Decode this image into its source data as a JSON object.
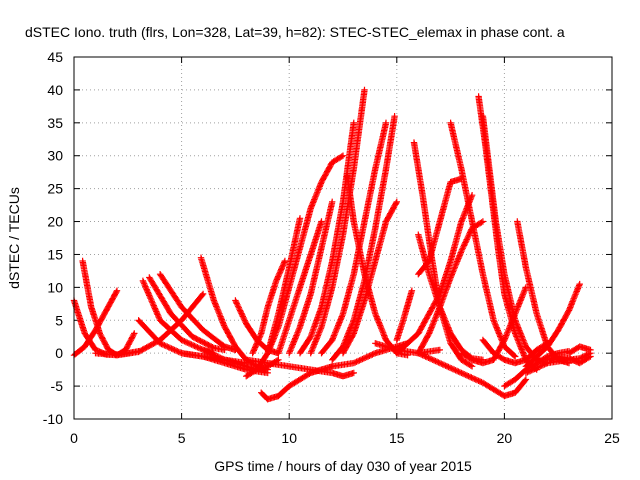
{
  "chart_data": {
    "type": "scatter",
    "title": "dSTEC Iono. truth (flrs, Lon=328, Lat=39, h=82): STEC-STEC_elemax in phase cont. a",
    "xlabel": "GPS time / hours of day 030 of year 2015",
    "ylabel": "dSTEC  / TECUs",
    "xlim": [
      0,
      25
    ],
    "ylim": [
      -10,
      45
    ],
    "xticks": [
      0,
      5,
      10,
      15,
      20,
      25
    ],
    "yticks": [
      -10,
      -5,
      0,
      5,
      10,
      15,
      20,
      25,
      30,
      35,
      40,
      45
    ],
    "grid": true,
    "marker": "plus",
    "color": "#ff0000",
    "series": [
      {
        "x": [
          0.0,
          0.5,
          1.0,
          1.5,
          2.0,
          2.5,
          3.0
        ],
        "y": [
          8.0,
          3.0,
          0.5,
          -0.2,
          -0.2,
          0.0,
          0.3
        ]
      },
      {
        "x": [
          0.0,
          0.5,
          1.0,
          1.5,
          2.0
        ],
        "y": [
          -0.3,
          1.0,
          3.5,
          6.5,
          9.5
        ]
      },
      {
        "x": [
          0.4,
          0.8,
          1.2,
          1.6,
          2.0,
          2.4,
          2.8
        ],
        "y": [
          14.0,
          7.0,
          3.0,
          0.5,
          -0.3,
          0.5,
          3.0
        ]
      },
      {
        "x": [
          1.0,
          2.0,
          3.0,
          4.0,
          5.0,
          6.0
        ],
        "y": [
          0.0,
          -0.3,
          0.2,
          2.0,
          5.0,
          9.0
        ]
      },
      {
        "x": [
          3.2,
          4.0,
          5.0,
          6.0,
          6.5
        ],
        "y": [
          11.0,
          5.0,
          2.0,
          0.5,
          0.0
        ]
      },
      {
        "x": [
          3.5,
          4.5,
          5.5,
          6.5,
          7.0
        ],
        "y": [
          11.5,
          6.0,
          2.5,
          0.8,
          0.5
        ]
      },
      {
        "x": [
          4.0,
          5.0,
          6.0,
          7.0,
          7.5
        ],
        "y": [
          12.0,
          7.0,
          3.5,
          1.0,
          0.5
        ]
      },
      {
        "x": [
          3.0,
          4.0,
          5.0,
          6.0,
          7.0,
          8.0
        ],
        "y": [
          5.0,
          1.5,
          0.0,
          -0.5,
          -1.0,
          -1.5
        ]
      },
      {
        "x": [
          5.9,
          6.5,
          7.0,
          7.5,
          8.0,
          8.5,
          9.0
        ],
        "y": [
          14.5,
          8.0,
          4.0,
          1.0,
          -1.0,
          -2.0,
          -2.5
        ]
      },
      {
        "x": [
          5.0,
          6.0,
          7.0,
          8.0,
          9.0
        ],
        "y": [
          0.0,
          -0.5,
          -1.5,
          -2.5,
          -3.0
        ]
      },
      {
        "x": [
          7.5,
          8.0,
          8.5,
          9.0,
          9.5
        ],
        "y": [
          8.0,
          4.5,
          2.0,
          0.5,
          0.0
        ]
      },
      {
        "x": [
          6.0,
          7.0,
          8.0,
          8.5,
          9.0,
          9.5
        ],
        "y": [
          0.5,
          -1.0,
          -2.0,
          -2.5,
          -2.0,
          -1.0
        ]
      },
      {
        "x": [
          8.7,
          9.0,
          9.5,
          10.0,
          10.5,
          11.0,
          11.5,
          12.0
        ],
        "y": [
          -6.0,
          -7.0,
          -6.5,
          -5.0,
          -4.0,
          -3.0,
          -2.5,
          -2.0
        ]
      },
      {
        "x": [
          8.0,
          8.5,
          9.0,
          9.5,
          10.0,
          10.5,
          11.0,
          11.5,
          12.0,
          12.5
        ],
        "y": [
          -3.5,
          -2.5,
          0.0,
          4.0,
          10.0,
          16.0,
          22.0,
          26.0,
          29.0,
          30.0
        ]
      },
      {
        "x": [
          8.3,
          8.7,
          9.0,
          9.4,
          9.8
        ],
        "y": [
          0.0,
          3.0,
          7.0,
          11.0,
          14.0
        ]
      },
      {
        "x": [
          9.0,
          9.5,
          10.0,
          10.5
        ],
        "y": [
          0.0,
          6.0,
          13.0,
          20.5
        ]
      },
      {
        "x": [
          9.5,
          10.0,
          10.5,
          11.0,
          11.5
        ],
        "y": [
          0.0,
          5.0,
          10.0,
          15.0,
          20.0
        ]
      },
      {
        "x": [
          10.0,
          10.5,
          11.0,
          11.5,
          12.0
        ],
        "y": [
          0.0,
          4.0,
          9.0,
          16.0,
          23.0
        ]
      },
      {
        "x": [
          8.0,
          9.0,
          10.0,
          11.0,
          12.0,
          12.5,
          13.0
        ],
        "y": [
          -1.0,
          -1.5,
          -2.0,
          -2.5,
          -3.0,
          -3.5,
          -3.0
        ]
      },
      {
        "x": [
          11.0,
          11.5,
          12.0,
          12.5,
          13.0,
          13.5
        ],
        "y": [
          0.0,
          4.0,
          10.0,
          18.0,
          28.0,
          40.0
        ]
      },
      {
        "x": [
          10.5,
          11.0,
          11.5,
          12.0,
          12.5,
          13.0
        ],
        "y": [
          0.0,
          2.5,
          7.0,
          14.0,
          23.0,
          35.0
        ]
      },
      {
        "x": [
          11.5,
          12.0,
          12.5,
          13.0,
          13.5,
          14.0,
          14.5
        ],
        "y": [
          0.0,
          2.0,
          6.0,
          12.0,
          20.0,
          28.0,
          35.0
        ]
      },
      {
        "x": [
          12.0,
          12.5,
          13.0,
          13.5,
          14.0,
          14.5,
          14.9
        ],
        "y": [
          -1.0,
          1.0,
          5.0,
          11.0,
          19.0,
          28.0,
          36.0
        ]
      },
      {
        "x": [
          12.5,
          13.0,
          13.5,
          14.0,
          14.5,
          15.0
        ],
        "y": [
          0.0,
          3.0,
          8.0,
          14.0,
          20.0,
          23.0
        ]
      },
      {
        "x": [
          12.7,
          13.0,
          13.5,
          14.0,
          14.5,
          15.0,
          15.5
        ],
        "y": [
          27.0,
          20.0,
          12.0,
          6.0,
          2.0,
          0.0,
          -0.3
        ]
      },
      {
        "x": [
          12.0,
          13.0,
          14.0,
          15.0,
          15.5
        ],
        "y": [
          -2.0,
          -1.5,
          0.0,
          1.0,
          1.5
        ]
      },
      {
        "x": [
          15.0,
          15.3,
          15.7
        ],
        "y": [
          2.0,
          5.0,
          9.5
        ]
      },
      {
        "x": [
          14.0,
          15.0,
          16.0,
          17.0
        ],
        "y": [
          1.5,
          0.5,
          0.0,
          0.5
        ]
      },
      {
        "x": [
          15.8,
          16.2,
          16.6,
          17.0,
          17.5,
          18.0,
          18.5
        ],
        "y": [
          32.0,
          24.0,
          15.0,
          7.0,
          1.5,
          -1.0,
          -2.0
        ]
      },
      {
        "x": [
          16.0,
          16.5,
          17.0,
          17.5,
          18.0,
          18.5,
          19.0
        ],
        "y": [
          18.0,
          12.0,
          7.0,
          3.0,
          0.5,
          -0.8,
          -1.0
        ]
      },
      {
        "x": [
          16.0,
          16.5,
          17.0,
          17.5,
          18.0,
          18.5,
          19.0
        ],
        "y": [
          0.0,
          3.0,
          7.0,
          11.5,
          15.5,
          19.0,
          20.0
        ]
      },
      {
        "x": [
          15.0,
          16.0,
          17.0,
          17.5,
          18.0,
          18.5
        ],
        "y": [
          0.0,
          3.0,
          9.0,
          14.0,
          20.0,
          24.0
        ]
      },
      {
        "x": [
          16.0,
          16.5,
          17.0,
          17.5,
          18.0
        ],
        "y": [
          12.0,
          14.0,
          20.0,
          26.0,
          26.5
        ]
      },
      {
        "x": [
          17.5,
          18.0,
          18.5,
          19.0,
          19.5,
          20.0,
          20.5
        ],
        "y": [
          35.0,
          28.0,
          20.0,
          12.0,
          5.0,
          1.0,
          -0.5
        ]
      },
      {
        "x": [
          18.8,
          19.1,
          19.4,
          19.7,
          20.0,
          20.5,
          21.0,
          21.5
        ],
        "y": [
          39.0,
          32.0,
          24.0,
          16.0,
          9.0,
          3.0,
          -1.0,
          -2.5
        ]
      },
      {
        "x": [
          19.0,
          19.3,
          19.6,
          20.0,
          20.5,
          21.0,
          21.5,
          22.0
        ],
        "y": [
          36.0,
          28.0,
          20.0,
          12.0,
          5.0,
          1.0,
          -1.0,
          -1.5
        ]
      },
      {
        "x": [
          16.0,
          17.0,
          18.0,
          19.0,
          19.5,
          20.0,
          20.5,
          21.0
        ],
        "y": [
          0.0,
          -1.5,
          -3.0,
          -4.5,
          -5.5,
          -6.5,
          -6.0,
          -4.0
        ]
      },
      {
        "x": [
          18.0,
          18.5,
          19.0,
          19.5,
          20.0,
          20.5,
          21.0
        ],
        "y": [
          0.0,
          -1.0,
          -1.5,
          -1.0,
          2.0,
          6.0,
          10.0
        ]
      },
      {
        "x": [
          19.0,
          19.5,
          20.0,
          20.5,
          21.0,
          21.5,
          22.0
        ],
        "y": [
          2.0,
          0.0,
          -1.0,
          -1.5,
          -1.0,
          0.5,
          1.5
        ]
      },
      {
        "x": [
          20.6,
          21.0,
          21.5,
          22.0,
          22.5,
          23.0
        ],
        "y": [
          20.0,
          13.0,
          6.0,
          1.0,
          -1.0,
          -1.5
        ]
      },
      {
        "x": [
          20.0,
          20.5,
          21.0,
          21.5,
          22.0,
          22.5,
          23.0
        ],
        "y": [
          -5.0,
          -4.0,
          -2.5,
          -1.5,
          -0.5,
          0.0,
          0.3
        ]
      },
      {
        "x": [
          21.0,
          21.5,
          22.0,
          22.5,
          23.0,
          23.5
        ],
        "y": [
          -2.0,
          -0.5,
          1.0,
          3.5,
          6.5,
          10.5
        ]
      },
      {
        "x": [
          21.0,
          22.0,
          23.0,
          23.5,
          24.0
        ],
        "y": [
          -3.0,
          -1.5,
          -1.0,
          -0.8,
          0.0
        ]
      },
      {
        "x": [
          22.0,
          22.5,
          23.0,
          23.5,
          24.0
        ],
        "y": [
          -1.0,
          -0.5,
          -0.8,
          -1.5,
          -0.5
        ]
      },
      {
        "x": [
          23.0,
          23.5,
          24.0
        ],
        "y": [
          0.0,
          1.0,
          0.5
        ]
      }
    ]
  }
}
